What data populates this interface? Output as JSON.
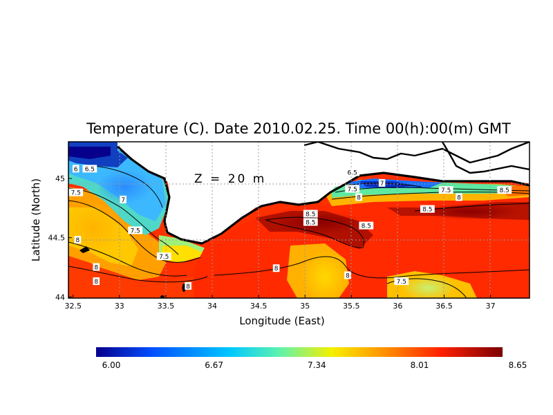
{
  "title": "Temperature (C). Date 2010.02.25. Time 00(h):00(m) GMT",
  "depth_annotation": "Z = 20 m",
  "axes": {
    "xlabel": "Longitude (East)",
    "ylabel": "Latitude (North)",
    "x_ticks": [
      "32.5",
      "33",
      "33.5",
      "34",
      "34.5",
      "35",
      "35.5",
      "36",
      "36.5",
      "37"
    ],
    "y_ticks": [
      "44",
      "44.5",
      "45"
    ]
  },
  "colorbar": {
    "min": 6.0,
    "max": 8.65,
    "tick_labels": [
      "6.00",
      "6.67",
      "7.34",
      "8.01",
      "8.65"
    ],
    "colors": [
      "#06008c",
      "#0050ff",
      "#00c8ff",
      "#5cf2b0",
      "#f5f000",
      "#ff9800",
      "#ff2000",
      "#7a0000"
    ]
  },
  "contour_labels": [
    {
      "text": "6",
      "lon": 32.53,
      "lat": 45.08
    },
    {
      "text": "6.5",
      "lon": 32.68,
      "lat": 45.08
    },
    {
      "text": "7.5",
      "lon": 32.53,
      "lat": 44.88
    },
    {
      "text": "7",
      "lon": 33.04,
      "lat": 44.82
    },
    {
      "text": "7.5",
      "lon": 33.17,
      "lat": 44.56
    },
    {
      "text": "8",
      "lon": 32.55,
      "lat": 44.48
    },
    {
      "text": "7.5",
      "lon": 33.48,
      "lat": 44.34
    },
    {
      "text": "8",
      "lon": 32.75,
      "lat": 44.25
    },
    {
      "text": "8",
      "lon": 32.75,
      "lat": 44.13
    },
    {
      "text": "8",
      "lon": 33.74,
      "lat": 44.09
    },
    {
      "text": "6.5",
      "lon": 35.51,
      "lat": 45.05
    },
    {
      "text": "7",
      "lon": 35.83,
      "lat": 44.96
    },
    {
      "text": "7.5",
      "lon": 35.51,
      "lat": 44.91
    },
    {
      "text": "8",
      "lon": 35.58,
      "lat": 44.84
    },
    {
      "text": "7.5",
      "lon": 36.52,
      "lat": 44.9
    },
    {
      "text": "8",
      "lon": 36.66,
      "lat": 44.84
    },
    {
      "text": "8.5",
      "lon": 37.15,
      "lat": 44.9
    },
    {
      "text": "8.5",
      "lon": 35.06,
      "lat": 44.7
    },
    {
      "text": "8.5",
      "lon": 35.06,
      "lat": 44.63
    },
    {
      "text": "8.5",
      "lon": 35.66,
      "lat": 44.6
    },
    {
      "text": "8.5",
      "lon": 36.32,
      "lat": 44.74
    },
    {
      "text": "8",
      "lon": 34.69,
      "lat": 44.24
    },
    {
      "text": "8",
      "lon": 35.46,
      "lat": 44.18
    },
    {
      "text": "7.5",
      "lon": 36.04,
      "lat": 44.13
    }
  ]
}
